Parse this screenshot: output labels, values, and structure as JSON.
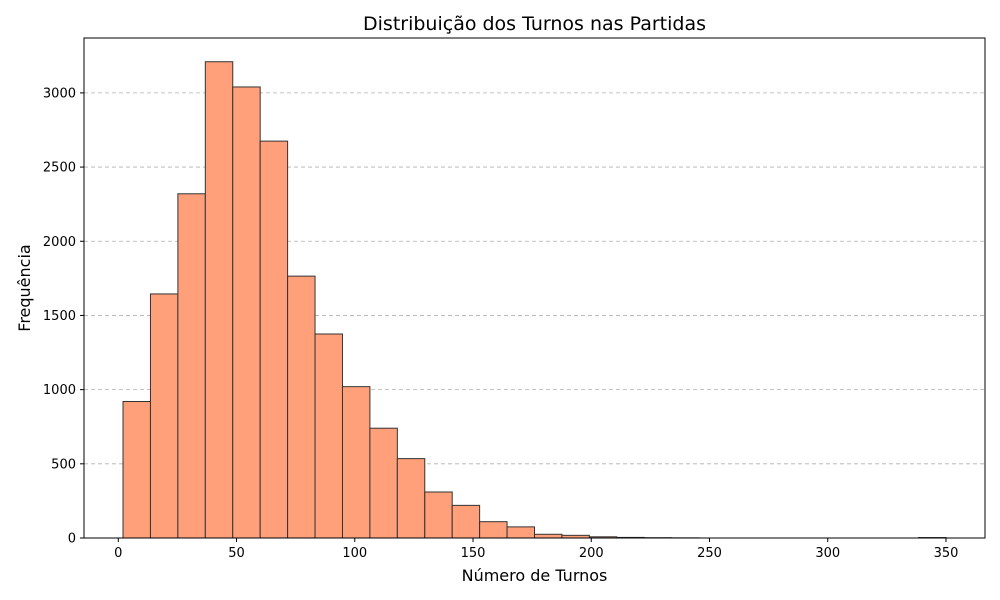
{
  "chart_data": {
    "type": "bar",
    "title": "Distribuição dos Turnos nas Partidas",
    "xlabel": "Número de Turnos",
    "ylabel": "Frequência",
    "bin_start": 2,
    "bin_width": 11.6,
    "values": [
      920,
      1645,
      2320,
      3210,
      3040,
      2675,
      1765,
      1375,
      1020,
      740,
      535,
      310,
      220,
      110,
      75,
      25,
      18,
      8,
      4,
      2,
      1,
      0,
      0,
      0,
      0,
      0,
      0,
      0,
      0,
      3
    ],
    "xlim": [
      -14.5,
      366.5
    ],
    "ylim": [
      0,
      3370
    ],
    "xticks": [
      0,
      50,
      100,
      150,
      200,
      250,
      300,
      350
    ],
    "yticks": [
      0,
      500,
      1000,
      1500,
      2000,
      2500,
      3000
    ],
    "grid": "y-dashed",
    "bar_color": "#FFA07A",
    "edge_color": "#333333"
  }
}
